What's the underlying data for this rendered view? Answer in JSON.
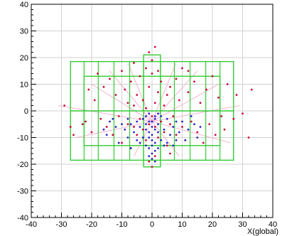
{
  "chart_data": {
    "type": "scatter",
    "title": "",
    "xlabel": "X(global)",
    "ylabel": "",
    "xlim": [
      -40,
      40
    ],
    "ylim": [
      -40,
      40
    ],
    "xticks": [
      -40,
      -30,
      -20,
      -10,
      0,
      10,
      20,
      30,
      40
    ],
    "yticks": [
      -40,
      -30,
      -20,
      -10,
      0,
      10,
      20,
      30,
      40
    ],
    "grid": true,
    "colors": {
      "grid": "#d2d2d2",
      "axis": "#000000",
      "module_outline": "#33cc33",
      "track": "#f2a0c8",
      "hit_red": "#cc0033",
      "hit_blue": "#2222cc"
    },
    "modules": [
      {
        "x0": -27,
        "x1": 27,
        "y0": -18.5,
        "y1": 18.5
      },
      {
        "x0": -22.5,
        "x1": 22.5,
        "y0": -13,
        "y1": 13
      },
      {
        "x0": -2.8,
        "x1": 2.8,
        "y0": -21,
        "y1": 21
      },
      {
        "x0": -27,
        "x1": 27,
        "y0": 0,
        "y1": 0
      }
    ],
    "module_columns_x": [
      -22.5,
      -17.8,
      -12.6,
      -7.4,
      -2.8,
      2.8,
      7.4,
      12.6,
      17.8,
      22.5
    ],
    "tracks": [
      {
        "x": [
          0,
          -31
        ],
        "y": [
          -4,
          2
        ]
      },
      {
        "x": [
          0,
          -25
        ],
        "y": [
          -4,
          -10
        ]
      },
      {
        "x": [
          0,
          -20
        ],
        "y": [
          -4,
          10
        ]
      },
      {
        "x": [
          0,
          -14
        ],
        "y": [
          -4,
          15
        ]
      },
      {
        "x": [
          0,
          -8
        ],
        "y": [
          -4,
          18
        ]
      },
      {
        "x": [
          0,
          -6
        ],
        "y": [
          -4,
          -17
        ]
      },
      {
        "x": [
          0,
          8
        ],
        "y": [
          -4,
          18
        ]
      },
      {
        "x": [
          0,
          15
        ],
        "y": [
          -4,
          15
        ]
      },
      {
        "x": [
          0,
          22
        ],
        "y": [
          -4,
          10
        ]
      },
      {
        "x": [
          0,
          29
        ],
        "y": [
          -4,
          2
        ]
      },
      {
        "x": [
          0,
          26
        ],
        "y": [
          -4,
          -12
        ]
      },
      {
        "x": [
          0,
          9
        ],
        "y": [
          -4,
          -17
        ]
      }
    ],
    "series": [
      {
        "marker": "red",
        "points": [
          [
            -29,
            2
          ],
          [
            -27,
            -6
          ],
          [
            -26,
            -9
          ],
          [
            -23,
            -5
          ],
          [
            -21,
            8
          ],
          [
            -20,
            -8
          ],
          [
            -19,
            4
          ],
          [
            -17,
            -3
          ],
          [
            -16,
            9
          ],
          [
            -15,
            -6
          ],
          [
            -14,
            12
          ],
          [
            -13,
            -9
          ],
          [
            -12,
            6
          ],
          [
            -11,
            -2
          ],
          [
            -10,
            15
          ],
          [
            -10,
            -12
          ],
          [
            -9,
            8
          ],
          [
            -8,
            -5
          ],
          [
            -8,
            3
          ],
          [
            -7,
            -14
          ],
          [
            -7,
            11
          ],
          [
            -6,
            -6
          ],
          [
            -6,
            2
          ],
          [
            -5,
            -9
          ],
          [
            -5,
            6
          ],
          [
            -4,
            -3
          ],
          [
            -4,
            13
          ],
          [
            -3,
            -7
          ],
          [
            -3,
            4
          ],
          [
            -2,
            -11
          ],
          [
            -2,
            1
          ],
          [
            -1,
            -5
          ],
          [
            -1,
            9
          ],
          [
            0,
            -2
          ],
          [
            0,
            14
          ],
          [
            1,
            -6
          ],
          [
            1,
            3
          ],
          [
            2,
            -10
          ],
          [
            2,
            7
          ],
          [
            3,
            -4
          ],
          [
            3,
            11
          ],
          [
            4,
            -8
          ],
          [
            4,
            2
          ],
          [
            5,
            -13
          ],
          [
            5,
            6
          ],
          [
            6,
            -5
          ],
          [
            6,
            9
          ],
          [
            7,
            -2
          ],
          [
            8,
            -9
          ],
          [
            8,
            12
          ],
          [
            9,
            4
          ],
          [
            10,
            -6
          ],
          [
            10,
            16
          ],
          [
            11,
            -11
          ],
          [
            12,
            7
          ],
          [
            13,
            -4
          ],
          [
            14,
            11
          ],
          [
            15,
            -8
          ],
          [
            16,
            3
          ],
          [
            17,
            -12
          ],
          [
            18,
            8
          ],
          [
            19,
            -5
          ],
          [
            20,
            13
          ],
          [
            21,
            -9
          ],
          [
            22,
            5
          ],
          [
            24,
            -7
          ],
          [
            25,
            10
          ],
          [
            27,
            -3
          ],
          [
            28,
            6
          ],
          [
            30,
            -1
          ],
          [
            33,
            8
          ],
          [
            32,
            -10
          ],
          [
            -1,
            22
          ],
          [
            1,
            24
          ],
          [
            0,
            19
          ],
          [
            -1,
            -19
          ],
          [
            0,
            -21
          ],
          [
            1,
            -17
          ],
          [
            -2,
            16
          ],
          [
            2,
            15
          ],
          [
            -18,
            14
          ],
          [
            12,
            15
          ],
          [
            -22,
            -4
          ],
          [
            23,
            -2
          ],
          [
            -6,
            18
          ],
          [
            6,
            -16
          ]
        ]
      },
      {
        "marker": "blue",
        "points": [
          [
            -3,
            -3
          ],
          [
            -2,
            -5
          ],
          [
            -1,
            -4
          ],
          [
            0,
            -6
          ],
          [
            1,
            -3
          ],
          [
            2,
            -5
          ],
          [
            3,
            -2
          ],
          [
            -2,
            -7
          ],
          [
            -1,
            -8
          ],
          [
            0,
            -9
          ],
          [
            1,
            -7
          ],
          [
            2,
            -8
          ],
          [
            -1,
            -10
          ],
          [
            0,
            -11
          ],
          [
            1,
            -12
          ],
          [
            0,
            -13
          ],
          [
            -1,
            -14
          ],
          [
            1,
            -15
          ],
          [
            0,
            -16
          ],
          [
            -1,
            -17
          ],
          [
            0,
            -18
          ],
          [
            1,
            -19
          ],
          [
            -4,
            -6
          ],
          [
            4,
            -7
          ],
          [
            -5,
            -4
          ],
          [
            5,
            -3
          ],
          [
            -6,
            -8
          ],
          [
            6,
            -9
          ],
          [
            -7,
            -5
          ],
          [
            7,
            -6
          ],
          [
            -8,
            -3
          ],
          [
            8,
            -4
          ],
          [
            -9,
            -7
          ],
          [
            9,
            -8
          ],
          [
            -10,
            -5
          ],
          [
            10,
            -4
          ],
          [
            -12,
            -6
          ],
          [
            12,
            -7
          ],
          [
            -13,
            -3
          ],
          [
            13,
            -2
          ],
          [
            -15,
            -9
          ],
          [
            15,
            -10
          ],
          [
            -11,
            -12
          ],
          [
            11,
            -11
          ],
          [
            -4,
            -12
          ],
          [
            4,
            -13
          ],
          [
            -3,
            -10
          ],
          [
            3,
            -11
          ],
          [
            -2,
            -2
          ],
          [
            2,
            -1
          ],
          [
            -1,
            -1
          ],
          [
            1,
            -2
          ],
          [
            0,
            -4
          ],
          [
            -5,
            -11
          ],
          [
            5,
            -12
          ],
          [
            -7,
            -14
          ],
          [
            7,
            -13
          ],
          [
            -2,
            -13
          ],
          [
            2,
            -14
          ],
          [
            -8,
            -10
          ],
          [
            8,
            -11
          ],
          [
            -14,
            -4
          ],
          [
            14,
            -5
          ],
          [
            -16,
            -7
          ],
          [
            16,
            -6
          ]
        ]
      }
    ]
  }
}
